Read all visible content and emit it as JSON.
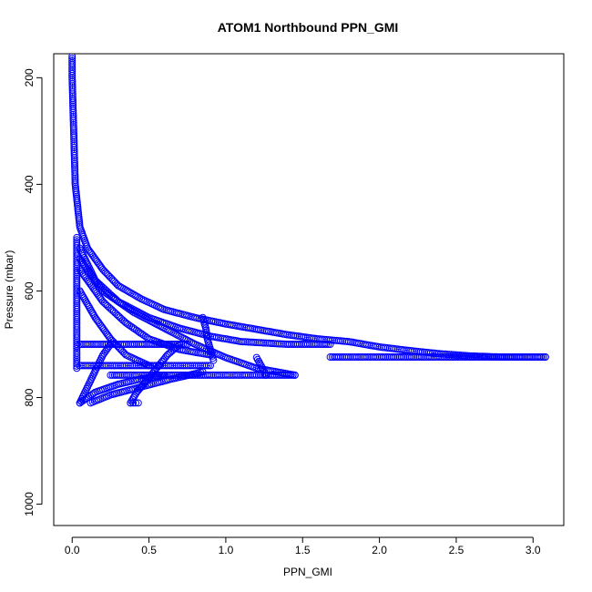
{
  "chart_data": {
    "type": "scatter",
    "title": "ATOM1 Northbound PPN_GMI",
    "xlabel": "PPN_GMI",
    "ylabel": "Pressure (mbar)",
    "xlim": [
      -0.12,
      3.2
    ],
    "ylim": [
      1040,
      155
    ],
    "y_axis_reversed": true,
    "x_ticks": [
      "0.0",
      "0.5",
      "1.0",
      "1.5",
      "2.0",
      "2.5",
      "3.0"
    ],
    "x_tick_values": [
      0,
      0.5,
      1.0,
      1.5,
      2.0,
      2.5,
      3.0
    ],
    "y_ticks": [
      "200",
      "400",
      "600",
      "800",
      "1000"
    ],
    "y_tick_values": [
      200,
      400,
      600,
      800,
      1000
    ],
    "marker": "open-circle",
    "color": "#0000ff",
    "grid": false,
    "legend": "none",
    "series": [
      {
        "values": [
          [
            0.0,
            160
          ],
          [
            0.0,
            200
          ],
          [
            0.01,
            300
          ],
          [
            0.02,
            400
          ],
          [
            0.05,
            480
          ],
          [
            0.1,
            520
          ],
          [
            0.2,
            560
          ],
          [
            0.3,
            590
          ],
          [
            0.45,
            615
          ],
          [
            0.6,
            635
          ],
          [
            0.8,
            650
          ],
          [
            1.0,
            662
          ],
          [
            1.2,
            672
          ],
          [
            1.4,
            682
          ],
          [
            1.6,
            690
          ],
          [
            1.8,
            695
          ],
          [
            2.0,
            705
          ],
          [
            2.2,
            712
          ],
          [
            2.4,
            718
          ],
          [
            2.6,
            722
          ],
          [
            2.8,
            724
          ],
          [
            3.08,
            724
          ]
        ]
      },
      {
        "values": [
          [
            1.68,
            724
          ],
          [
            2.0,
            724
          ],
          [
            2.5,
            724
          ],
          [
            3.08,
            724
          ]
        ]
      },
      {
        "values": [
          [
            0.05,
            520
          ],
          [
            0.15,
            580
          ],
          [
            0.3,
            620
          ],
          [
            0.5,
            650
          ],
          [
            0.7,
            670
          ],
          [
            0.9,
            685
          ],
          [
            1.1,
            695
          ],
          [
            1.4,
            700
          ],
          [
            1.68,
            700
          ]
        ]
      },
      {
        "values": [
          [
            0.05,
            540
          ],
          [
            0.2,
            600
          ],
          [
            0.4,
            640
          ],
          [
            0.6,
            670
          ],
          [
            0.8,
            700
          ],
          [
            1.0,
            725
          ],
          [
            1.2,
            745
          ],
          [
            1.45,
            758
          ]
        ]
      },
      {
        "values": [
          [
            0.25,
            758
          ],
          [
            0.5,
            758
          ],
          [
            0.75,
            758
          ],
          [
            1.0,
            758
          ],
          [
            1.2,
            758
          ],
          [
            1.45,
            758
          ]
        ]
      },
      {
        "values": [
          [
            0.05,
            700
          ],
          [
            0.3,
            700
          ],
          [
            0.5,
            700
          ],
          [
            0.75,
            700
          ]
        ]
      },
      {
        "values": [
          [
            0.05,
            740
          ],
          [
            0.3,
            740
          ],
          [
            0.6,
            740
          ],
          [
            0.9,
            740
          ]
        ]
      },
      {
        "values": [
          [
            0.05,
            810
          ],
          [
            0.15,
            790
          ],
          [
            0.3,
            775
          ],
          [
            0.45,
            765
          ],
          [
            0.6,
            758
          ]
        ]
      },
      {
        "values": [
          [
            0.05,
            810
          ],
          [
            0.1,
            780
          ],
          [
            0.15,
            750
          ],
          [
            0.2,
            720
          ],
          [
            0.25,
            700
          ]
        ]
      },
      {
        "values": [
          [
            0.38,
            810
          ],
          [
            0.42,
            790
          ],
          [
            0.48,
            770
          ],
          [
            0.55,
            745
          ],
          [
            0.62,
            720
          ],
          [
            0.7,
            700
          ]
        ]
      },
      {
        "values": [
          [
            0.38,
            810
          ],
          [
            0.43,
            810
          ]
        ]
      },
      {
        "values": [
          [
            0.12,
            810
          ],
          [
            0.25,
            795
          ],
          [
            0.45,
            780
          ],
          [
            0.65,
            765
          ],
          [
            0.85,
            752
          ]
        ]
      },
      {
        "values": [
          [
            0.85,
            650
          ],
          [
            0.87,
            670
          ],
          [
            0.88,
            690
          ],
          [
            0.9,
            710
          ],
          [
            0.92,
            730
          ]
        ]
      },
      {
        "values": [
          [
            1.2,
            725
          ],
          [
            1.23,
            740
          ],
          [
            1.26,
            758
          ]
        ]
      },
      {
        "values": [
          [
            0.03,
            500
          ],
          [
            0.03,
            600
          ],
          [
            0.03,
            700
          ],
          [
            0.03,
            745
          ]
        ]
      },
      {
        "values": [
          [
            0.05,
            560
          ],
          [
            0.2,
            620
          ],
          [
            0.35,
            660
          ],
          [
            0.5,
            690
          ],
          [
            0.7,
            710
          ],
          [
            0.9,
            720
          ]
        ]
      },
      {
        "values": [
          [
            0.05,
            600
          ],
          [
            0.15,
            650
          ],
          [
            0.25,
            690
          ],
          [
            0.35,
            720
          ],
          [
            0.5,
            740
          ]
        ]
      }
    ]
  }
}
